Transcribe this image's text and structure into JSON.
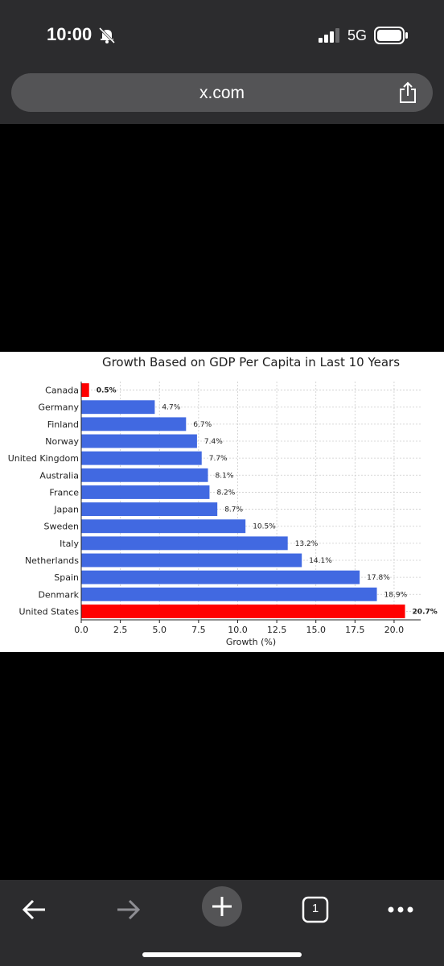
{
  "status": {
    "time": "10:00",
    "network": "5G"
  },
  "browser": {
    "url": "x.com"
  },
  "toolbar": {
    "tab_count": "1"
  },
  "icons": {
    "bell": "bell-slash-icon",
    "signal": "cellular-signal-icon",
    "battery": "battery-icon",
    "share": "share-icon",
    "back": "back-arrow-icon",
    "forward": "forward-arrow-icon",
    "new_tab": "plus-icon",
    "tabs": "tabs-icon",
    "more": "more-icon"
  },
  "chart_data": {
    "type": "bar",
    "orientation": "horizontal",
    "title": "Growth Based on GDP Per Capita in Last 10 Years",
    "xlabel": "Growth (%)",
    "ylabel": "",
    "categories": [
      "Canada",
      "Germany",
      "Finland",
      "Norway",
      "United Kingdom",
      "Australia",
      "France",
      "Japan",
      "Sweden",
      "Italy",
      "Netherlands",
      "Spain",
      "Denmark",
      "United States"
    ],
    "values": [
      0.5,
      4.7,
      6.7,
      7.4,
      7.7,
      8.1,
      8.2,
      8.7,
      10.5,
      13.2,
      14.1,
      17.8,
      18.9,
      20.7
    ],
    "value_labels": [
      "0.5%",
      "4.7%",
      "6.7%",
      "7.4%",
      "7.7%",
      "8.1%",
      "8.2%",
      "8.7%",
      "10.5%",
      "13.2%",
      "14.1%",
      "17.8%",
      "18.9%",
      "20.7%"
    ],
    "highlighted": [
      "Canada",
      "United States"
    ],
    "xticks": [
      "0.0",
      "2.5",
      "5.0",
      "7.5",
      "10.0",
      "12.5",
      "15.0",
      "17.5",
      "20.0"
    ],
    "xlim": [
      0,
      21.7
    ],
    "grid": true,
    "colors": {
      "bar": "#4169e1",
      "highlight": "#ff0000"
    }
  }
}
